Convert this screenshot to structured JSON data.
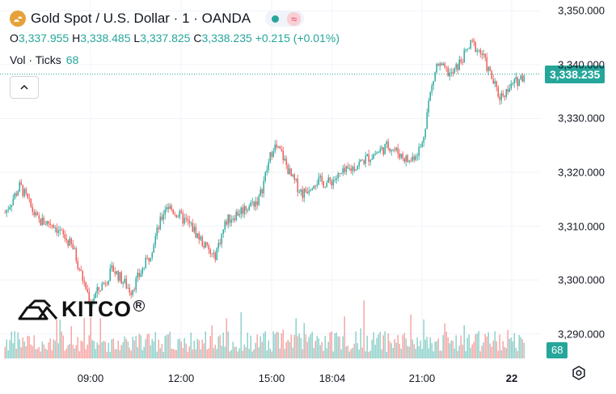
{
  "header": {
    "title": "Gold Spot / U.S. Dollar · 1 · OANDA",
    "symbol_icon": "gold-bars-icon",
    "status_dot_color": "#26a69a",
    "wave_glyph": "≈"
  },
  "ohlc": {
    "o_label": "O",
    "o_value": "3,337.955",
    "h_label": "H",
    "h_value": "3,338.485",
    "l_label": "L",
    "l_value": "3,337.825",
    "c_label": "C",
    "c_value": "3,338.235",
    "change": "+0.215 (+0.01%)"
  },
  "volume_legend": {
    "label": "Vol · Ticks",
    "value": "68"
  },
  "price_axis": {
    "ticks": [
      "3,350.000",
      "3,340.000",
      "3,330.000",
      "3,320.000",
      "3,310.000",
      "3,300.000",
      "3,290.000"
    ],
    "last_price_label": "3,338.235",
    "volume_label": "68"
  },
  "time_axis": {
    "ticks": [
      {
        "label": "09:00",
        "bold": false
      },
      {
        "label": "12:00",
        "bold": false
      },
      {
        "label": "15:00",
        "bold": false
      },
      {
        "label": "18:04",
        "bold": false
      },
      {
        "label": "21:00",
        "bold": false
      },
      {
        "label": "22",
        "bold": true
      }
    ]
  },
  "watermark": {
    "text": "KITCO",
    "reg": "R"
  },
  "colors": {
    "up": "#26a69a",
    "down": "#ef5350",
    "grid": "#f0f3fa",
    "accent": "#26a69a"
  },
  "chart_data": {
    "type": "candlestick",
    "title": "Gold Spot / U.S. Dollar · 1 · OANDA",
    "x_unit": "1-minute bars",
    "x_ticks": [
      "09:00",
      "12:00",
      "15:00",
      "18:04",
      "21:00",
      "22"
    ],
    "ylim": [
      3285,
      3352
    ],
    "y_ticks": [
      3350,
      3340,
      3330,
      3320,
      3310,
      3300,
      3290
    ],
    "grid": true,
    "last_price": 3338.235,
    "last": {
      "open": 3337.955,
      "high": 3338.485,
      "low": 3337.825,
      "close": 3338.235,
      "change": 0.215,
      "change_pct": 0.01,
      "volume": 68
    },
    "close_path": [
      {
        "time": "06:10",
        "value": 3312.5
      },
      {
        "time": "06:40",
        "value": 3317.5
      },
      {
        "time": "07:15",
        "value": 3311.0
      },
      {
        "time": "07:45",
        "value": 3310.5
      },
      {
        "time": "08:25",
        "value": 3306.0
      },
      {
        "time": "08:45",
        "value": 3300.0
      },
      {
        "time": "09:00",
        "value": 3296.0
      },
      {
        "time": "09:45",
        "value": 3302.0
      },
      {
        "time": "10:20",
        "value": 3298.0
      },
      {
        "time": "10:55",
        "value": 3304.0
      },
      {
        "time": "11:30",
        "value": 3314.0
      },
      {
        "time": "12:20",
        "value": 3310.0
      },
      {
        "time": "13:05",
        "value": 3304.0
      },
      {
        "time": "13:30",
        "value": 3311.0
      },
      {
        "time": "14:00",
        "value": 3313.0
      },
      {
        "time": "14:35",
        "value": 3315.0
      },
      {
        "time": "15:05",
        "value": 3325.0
      },
      {
        "time": "15:30",
        "value": 3323.5
      },
      {
        "time": "16:00",
        "value": 3319.0
      },
      {
        "time": "16:35",
        "value": 3316.0
      },
      {
        "time": "17:10",
        "value": 3318.5
      },
      {
        "time": "17:50",
        "value": 3318.0
      },
      {
        "time": "18:30",
        "value": 3320.0
      },
      {
        "time": "19:10",
        "value": 3322.5
      },
      {
        "time": "19:55",
        "value": 3325.0
      },
      {
        "time": "20:35",
        "value": 3322.0
      },
      {
        "time": "21:00",
        "value": 3325.0
      },
      {
        "time": "21:15",
        "value": 3334.0
      },
      {
        "time": "21:30",
        "value": 3340.0
      },
      {
        "time": "22:00",
        "value": 3338.0
      },
      {
        "time": "22:40",
        "value": 3344.0
      },
      {
        "time": "23:00",
        "value": 3342.0
      },
      {
        "time": "23:35",
        "value": 3334.0
      },
      {
        "time": "00:00",
        "value": 3336.0
      },
      {
        "time": "00:25",
        "value": 3338.2
      }
    ]
  }
}
